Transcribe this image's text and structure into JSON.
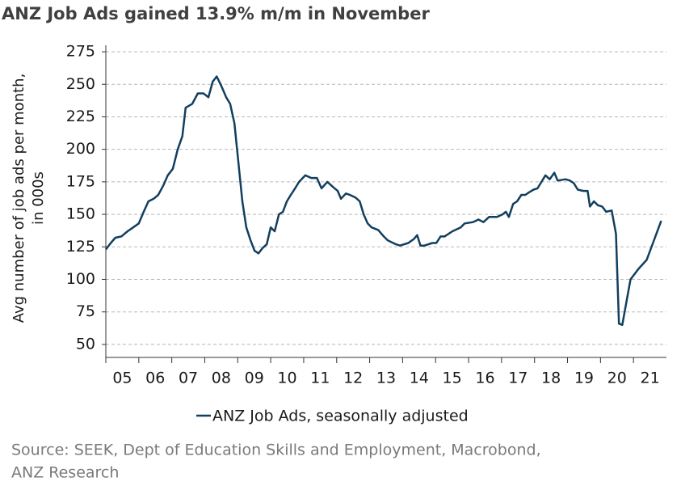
{
  "chart_data": {
    "type": "line",
    "title": "ANZ Job Ads gained 13.9% m/m in November",
    "y_label": [
      "Avg number of job ads per month,",
      "in 000s"
    ],
    "source": [
      "Source: SEEK, Dept of Education Skills and Employment, Macrobond,",
      "ANZ Research"
    ],
    "x": [
      2005.0,
      2005.15,
      2005.29,
      2005.47,
      2005.66,
      2005.83,
      2006.0,
      2006.15,
      2006.29,
      2006.45,
      2006.59,
      2006.74,
      2006.88,
      2007.03,
      2007.18,
      2007.32,
      2007.42,
      2007.62,
      2007.79,
      2007.96,
      2008.11,
      2008.24,
      2008.36,
      2008.48,
      2008.65,
      2008.77,
      2008.9,
      2009.02,
      2009.14,
      2009.26,
      2009.39,
      2009.51,
      2009.63,
      2009.75,
      2009.88,
      2010.0,
      2010.12,
      2010.25,
      2010.37,
      2010.49,
      2010.61,
      2010.74,
      2010.86,
      2011.05,
      2011.23,
      2011.4,
      2011.54,
      2011.72,
      2011.89,
      2012.03,
      2012.13,
      2012.28,
      2012.4,
      2012.57,
      2012.7,
      2012.82,
      2012.94,
      2013.06,
      2013.26,
      2013.43,
      2013.55,
      2013.8,
      2013.92,
      2014.17,
      2014.34,
      2014.44,
      2014.54,
      2014.66,
      2014.9,
      2015.02,
      2015.15,
      2015.27,
      2015.51,
      2015.76,
      2015.88,
      2016.13,
      2016.3,
      2016.45,
      2016.62,
      2016.86,
      2017.03,
      2017.13,
      2017.22,
      2017.35,
      2017.47,
      2017.6,
      2017.72,
      2017.84,
      2017.97,
      2018.09,
      2018.21,
      2018.33,
      2018.46,
      2018.6,
      2018.7,
      2018.94,
      2019.07,
      2019.19,
      2019.31,
      2019.48,
      2019.61,
      2019.68,
      2019.8,
      2019.92,
      2020.05,
      2020.17,
      2020.34,
      2020.47,
      2020.56,
      2020.66,
      2020.91,
      2021.15,
      2021.4,
      2021.59,
      2021.84
    ],
    "series": [
      {
        "name": "ANZ Job Ads, seasonally adjusted",
        "color": "#123f5e",
        "values": [
          123,
          128,
          132,
          133,
          137,
          140,
          143,
          152,
          160,
          162,
          165,
          172,
          180,
          185,
          200,
          210,
          232,
          235,
          243,
          243,
          240,
          252,
          256,
          250,
          240,
          235,
          220,
          190,
          160,
          140,
          130,
          122,
          120,
          124,
          127,
          140,
          137,
          150,
          152,
          160,
          165,
          170,
          175,
          180,
          178,
          178,
          170,
          175,
          171,
          168,
          162,
          166,
          165,
          163,
          160,
          150,
          143,
          140,
          138,
          133,
          130,
          127,
          126,
          128,
          131,
          134,
          126,
          126,
          128,
          128,
          133,
          133,
          137,
          140,
          143,
          144,
          146,
          144,
          148,
          148,
          150,
          152,
          148,
          158,
          160,
          165,
          165,
          167,
          169,
          170,
          175,
          180,
          177,
          182,
          176,
          177,
          176,
          174,
          169,
          168,
          168,
          156,
          160,
          157,
          156,
          152,
          153,
          135,
          66,
          65,
          100,
          108,
          115,
          128,
          145
        ]
      }
    ],
    "xlim": [
      2005,
      2022
    ],
    "xticks": [
      {
        "value": 2005,
        "label": "05"
      },
      {
        "value": 2006,
        "label": "06"
      },
      {
        "value": 2007,
        "label": "07"
      },
      {
        "value": 2008,
        "label": "08"
      },
      {
        "value": 2009,
        "label": "09"
      },
      {
        "value": 2010,
        "label": "10"
      },
      {
        "value": 2011,
        "label": "11"
      },
      {
        "value": 2012,
        "label": "12"
      },
      {
        "value": 2013,
        "label": "13"
      },
      {
        "value": 2014,
        "label": "14"
      },
      {
        "value": 2015,
        "label": "15"
      },
      {
        "value": 2016,
        "label": "16"
      },
      {
        "value": 2017,
        "label": "17"
      },
      {
        "value": 2018,
        "label": "18"
      },
      {
        "value": 2019,
        "label": "19"
      },
      {
        "value": 2020,
        "label": "20"
      },
      {
        "value": 2021,
        "label": "21"
      }
    ],
    "ylim": [
      40,
      280
    ],
    "yticks": [
      50,
      75,
      100,
      125,
      150,
      175,
      200,
      225,
      250,
      275
    ],
    "grid": true
  }
}
